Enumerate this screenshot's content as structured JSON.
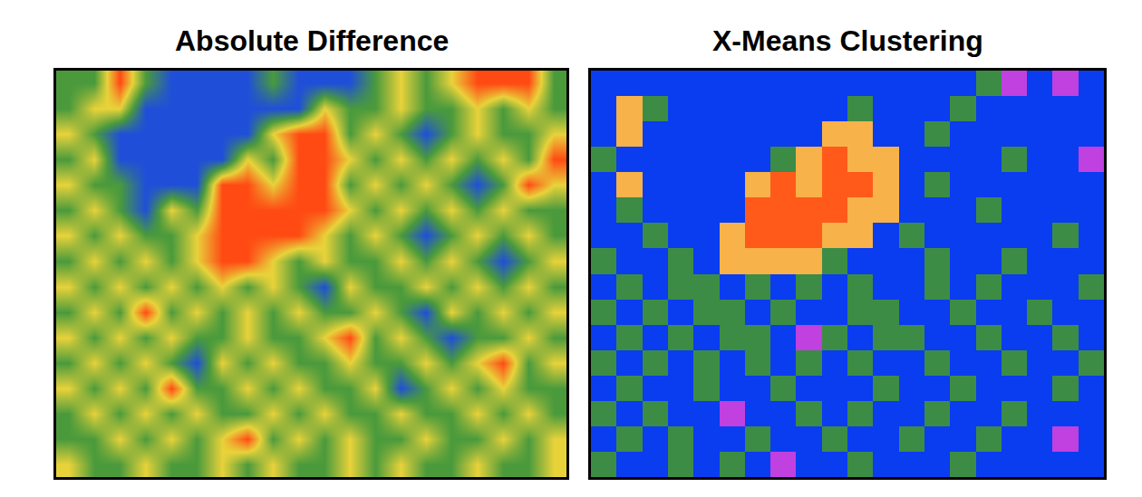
{
  "chart_data": [
    {
      "type": "heatmap",
      "title": "Absolute Difference",
      "tick_labels": false,
      "z": [
        [
          1,
          1,
          3,
          1,
          0,
          0,
          0,
          0,
          1,
          0,
          0,
          0,
          1,
          2,
          1,
          2,
          3,
          3,
          3,
          1
        ],
        [
          1,
          2,
          2,
          0,
          0,
          0,
          0,
          0,
          0,
          0,
          2,
          1,
          1,
          2,
          1,
          1,
          2,
          1,
          2,
          1
        ],
        [
          2,
          1,
          0,
          0,
          0,
          0,
          0,
          0,
          2,
          3,
          3,
          1,
          2,
          1,
          0,
          1,
          2,
          1,
          1,
          2
        ],
        [
          1,
          2,
          0,
          0,
          0,
          0,
          0,
          2,
          1,
          3,
          3,
          2,
          1,
          2,
          1,
          2,
          1,
          2,
          1,
          3
        ],
        [
          2,
          1,
          1,
          0,
          0,
          0,
          3,
          3,
          2,
          3,
          3,
          1,
          2,
          1,
          2,
          1,
          0,
          1,
          3,
          2
        ],
        [
          1,
          2,
          1,
          0,
          2,
          1,
          3,
          3,
          3,
          3,
          3,
          2,
          1,
          2,
          1,
          2,
          1,
          2,
          1,
          1
        ],
        [
          2,
          1,
          2,
          1,
          1,
          2,
          3,
          3,
          3,
          3,
          2,
          1,
          2,
          1,
          0,
          1,
          2,
          1,
          2,
          1
        ],
        [
          1,
          2,
          1,
          2,
          1,
          2,
          3,
          3,
          2,
          1,
          2,
          1,
          1,
          2,
          1,
          2,
          1,
          0,
          1,
          2
        ],
        [
          2,
          1,
          2,
          1,
          2,
          1,
          2,
          1,
          2,
          1,
          0,
          2,
          1,
          1,
          2,
          1,
          2,
          1,
          2,
          1
        ],
        [
          1,
          2,
          1,
          3,
          1,
          2,
          1,
          2,
          1,
          2,
          1,
          1,
          2,
          1,
          0,
          2,
          1,
          2,
          1,
          2
        ],
        [
          2,
          1,
          2,
          1,
          2,
          1,
          1,
          2,
          1,
          1,
          2,
          3,
          1,
          2,
          1,
          0,
          1,
          1,
          2,
          1
        ],
        [
          1,
          2,
          1,
          2,
          1,
          0,
          2,
          1,
          2,
          1,
          1,
          2,
          1,
          1,
          2,
          1,
          2,
          3,
          1,
          2
        ],
        [
          2,
          1,
          2,
          1,
          3,
          1,
          1,
          2,
          1,
          2,
          1,
          1,
          2,
          0,
          1,
          2,
          1,
          2,
          1,
          1
        ],
        [
          1,
          2,
          1,
          2,
          1,
          2,
          1,
          1,
          2,
          1,
          2,
          1,
          1,
          2,
          1,
          1,
          2,
          1,
          2,
          1
        ],
        [
          1,
          1,
          2,
          1,
          2,
          1,
          2,
          3,
          1,
          2,
          1,
          2,
          1,
          1,
          2,
          1,
          1,
          2,
          1,
          2
        ],
        [
          2,
          1,
          1,
          2,
          1,
          1,
          2,
          1,
          2,
          1,
          1,
          2,
          1,
          2,
          1,
          1,
          2,
          1,
          1,
          2
        ]
      ]
    },
    {
      "type": "heatmap",
      "title": "X-Means Clustering",
      "tick_labels": false,
      "z": [
        [
          0,
          0,
          0,
          0,
          0,
          0,
          0,
          0,
          0,
          0,
          0,
          0,
          0,
          0,
          0,
          1,
          4,
          0,
          4,
          0
        ],
        [
          0,
          2,
          1,
          0,
          0,
          0,
          0,
          0,
          0,
          0,
          1,
          0,
          0,
          0,
          1,
          0,
          0,
          0,
          0,
          0
        ],
        [
          0,
          2,
          0,
          0,
          0,
          0,
          0,
          0,
          0,
          2,
          2,
          0,
          0,
          1,
          0,
          0,
          0,
          0,
          0,
          0
        ],
        [
          1,
          0,
          0,
          0,
          0,
          0,
          0,
          1,
          2,
          3,
          2,
          2,
          0,
          0,
          0,
          0,
          1,
          0,
          0,
          4
        ],
        [
          0,
          2,
          0,
          0,
          0,
          0,
          2,
          3,
          2,
          3,
          3,
          2,
          0,
          1,
          0,
          0,
          0,
          0,
          0,
          0
        ],
        [
          0,
          1,
          0,
          0,
          0,
          0,
          3,
          3,
          3,
          3,
          2,
          2,
          0,
          0,
          0,
          1,
          0,
          0,
          0,
          0
        ],
        [
          0,
          0,
          1,
          0,
          0,
          2,
          3,
          3,
          3,
          2,
          2,
          0,
          1,
          0,
          0,
          0,
          0,
          0,
          1,
          0
        ],
        [
          1,
          0,
          0,
          1,
          0,
          2,
          2,
          2,
          2,
          1,
          0,
          0,
          0,
          1,
          0,
          0,
          1,
          0,
          0,
          0
        ],
        [
          0,
          1,
          0,
          1,
          1,
          0,
          1,
          0,
          1,
          0,
          1,
          0,
          0,
          1,
          0,
          1,
          0,
          0,
          0,
          1
        ],
        [
          1,
          0,
          1,
          0,
          1,
          1,
          0,
          1,
          0,
          0,
          1,
          1,
          0,
          0,
          1,
          0,
          0,
          1,
          0,
          0
        ],
        [
          0,
          1,
          0,
          1,
          0,
          1,
          1,
          0,
          4,
          1,
          0,
          1,
          1,
          0,
          0,
          1,
          0,
          0,
          1,
          0
        ],
        [
          1,
          0,
          1,
          0,
          1,
          0,
          1,
          0,
          1,
          0,
          1,
          0,
          0,
          1,
          0,
          0,
          1,
          0,
          0,
          1
        ],
        [
          0,
          1,
          0,
          0,
          1,
          0,
          0,
          1,
          0,
          0,
          0,
          1,
          0,
          0,
          1,
          0,
          0,
          0,
          1,
          0
        ],
        [
          1,
          0,
          1,
          0,
          0,
          4,
          0,
          0,
          1,
          0,
          1,
          0,
          0,
          1,
          0,
          0,
          1,
          0,
          0,
          0
        ],
        [
          0,
          1,
          0,
          1,
          0,
          0,
          1,
          0,
          0,
          1,
          0,
          0,
          1,
          0,
          0,
          1,
          0,
          0,
          4,
          0
        ],
        [
          1,
          0,
          0,
          1,
          0,
          1,
          0,
          4,
          0,
          0,
          1,
          0,
          0,
          0,
          1,
          0,
          0,
          0,
          0,
          0
        ]
      ]
    }
  ]
}
